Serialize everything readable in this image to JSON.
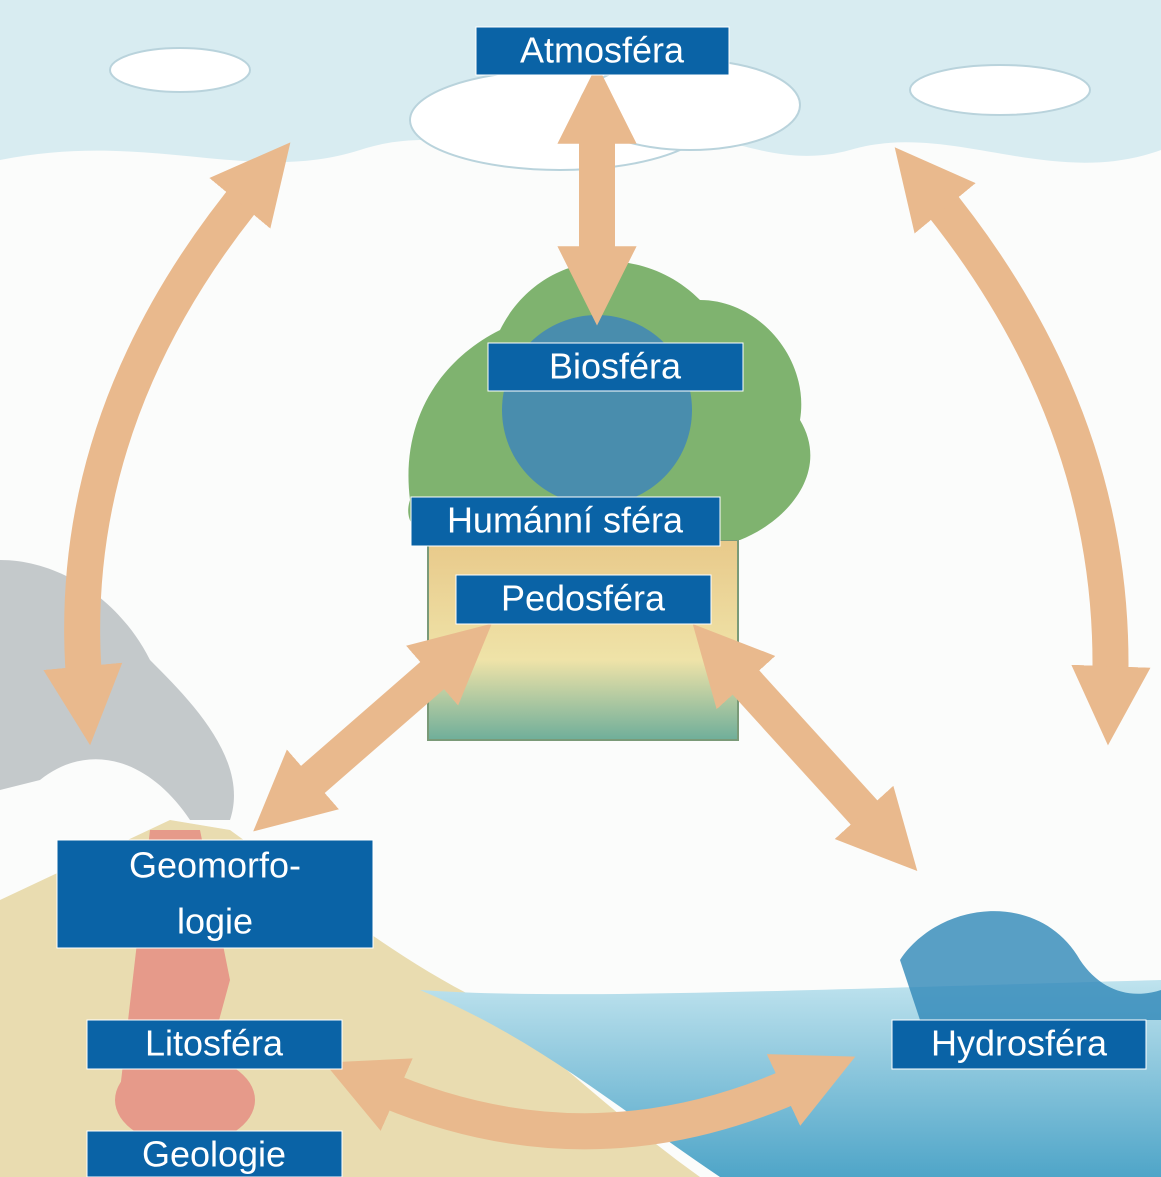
{
  "nodes": [
    {
      "lines": [
        "Atmosféra"
      ]
    },
    {
      "lines": [
        "Biosféra"
      ]
    },
    {
      "lines": [
        "Humánní sféra"
      ]
    },
    {
      "lines": [
        "Pedosféra"
      ]
    },
    {
      "lines": [
        "Geomorfo-",
        "logie"
      ]
    },
    {
      "lines": [
        "Litosféra"
      ]
    },
    {
      "lines": [
        "Hydrosféra"
      ]
    },
    {
      "lines": [
        "Geologie"
      ]
    }
  ]
}
